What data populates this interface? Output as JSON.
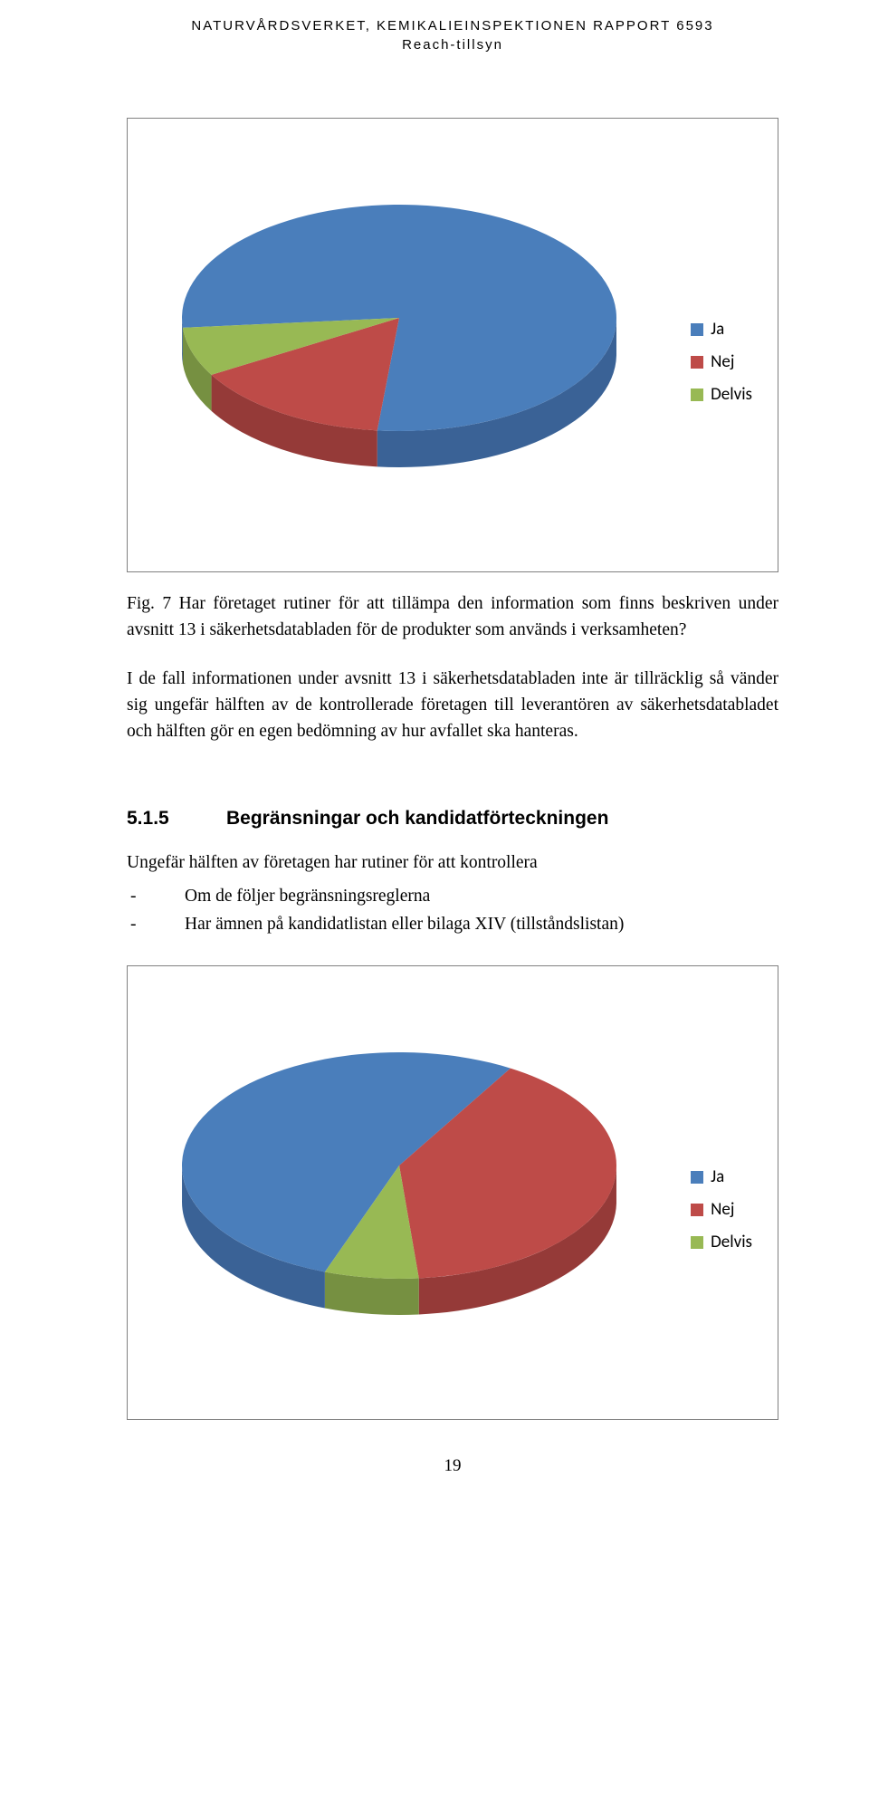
{
  "header": {
    "line1": "NATURVÅRDSVERKET, KEMIKALIEINSPEKTIONEN RAPPORT 6593",
    "line2": "Reach-tillsyn"
  },
  "chart1": {
    "type": "pie3d",
    "slices": [
      {
        "label": "Ja",
        "value": 78,
        "color": "#4a7ebb",
        "side": "#3a6296"
      },
      {
        "label": "Nej",
        "value": 15,
        "color": "#be4b48",
        "side": "#953a38"
      },
      {
        "label": "Delvis",
        "value": 7,
        "color": "#98b954",
        "side": "#769041"
      }
    ],
    "legend_swatch_colors": [
      "#4a7ebb",
      "#be4b48",
      "#98b954"
    ],
    "border_color": "#808080",
    "background": "#ffffff",
    "legend_fontsize": 19,
    "start_angle_deg": 175,
    "depth": 40
  },
  "fig7": {
    "text": "Fig. 7 Har företaget rutiner för att tillämpa den information som finns beskriven under avsnitt 13 i säkerhetsdatabladen för de produkter som används i verksamheten?"
  },
  "para_after_fig7": {
    "text": "I de fall informationen under avsnitt 13 i säkerhetsdatabladen inte är tillräcklig så vänder sig ungefär hälften av de kontrollerade företagen till leverantören av säkerhetsdatabladet och hälften gör en egen bedömning av hur avfallet ska hanteras."
  },
  "section_5_1_5": {
    "number": "5.1.5",
    "title": "Begränsningar och kandidatförteckningen",
    "intro": "Ungefär hälften av företagen har rutiner för att kontrollera",
    "items": [
      "Om de följer begränsningsreglerna",
      "Har ämnen på kandidatlistan eller bilaga XIV (tillståndslistan)"
    ]
  },
  "chart2": {
    "type": "pie3d",
    "slices": [
      {
        "label": "Ja",
        "value": 53,
        "color": "#4a7ebb",
        "side": "#3a6296"
      },
      {
        "label": "Nej",
        "value": 40,
        "color": "#be4b48",
        "side": "#953a38"
      },
      {
        "label": "Delvis",
        "value": 7,
        "color": "#98b954",
        "side": "#769041"
      }
    ],
    "legend_swatch_colors": [
      "#4a7ebb",
      "#be4b48",
      "#98b954"
    ],
    "border_color": "#808080",
    "background": "#ffffff",
    "legend_fontsize": 19,
    "start_angle_deg": 110,
    "depth": 40
  },
  "page_number": "19"
}
